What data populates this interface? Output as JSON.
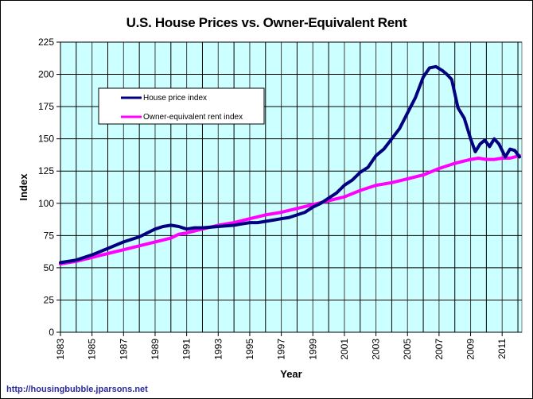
{
  "chart_data": {
    "type": "line",
    "title": "U.S. House Prices vs. Owner-Equivalent Rent",
    "xlabel": "Year",
    "ylabel": "Index",
    "xlim": [
      1983,
      2012.2
    ],
    "ylim": [
      0,
      225
    ],
    "yticks": [
      0,
      25,
      50,
      75,
      100,
      125,
      150,
      175,
      200,
      225
    ],
    "xtick_labels": [
      "1983",
      "1985",
      "1987",
      "1989",
      "1991",
      "1993",
      "1995",
      "1997",
      "1999",
      "2001",
      "2003",
      "2005",
      "2007",
      "2009",
      "2011"
    ],
    "grid": true,
    "legend_position": "top-left",
    "series": [
      {
        "name": "House price index",
        "color": "#000080",
        "x": [
          1983,
          1984,
          1985,
          1986,
          1987,
          1987.5,
          1988,
          1988.5,
          1989,
          1989.5,
          1990,
          1990.5,
          1991,
          1991.5,
          1992,
          1993,
          1994,
          1994.5,
          1995,
          1995.5,
          1996,
          1996.5,
          1997,
          1997.5,
          1998,
          1998.5,
          1999,
          1999.5,
          2000,
          2000.5,
          2001,
          2001.5,
          2002,
          2002.5,
          2003,
          2003.5,
          2004,
          2004.5,
          2005,
          2005.5,
          2006,
          2006.4,
          2006.8,
          2007.2,
          2007.5,
          2007.8,
          2008.2,
          2008.6,
          2009,
          2009.3,
          2009.6,
          2009.9,
          2010.2,
          2010.5,
          2010.8,
          2011.2,
          2011.5,
          2011.8,
          2012.1
        ],
        "values": [
          54,
          56,
          60,
          65,
          70,
          72,
          74,
          77,
          80,
          82,
          83,
          82,
          80,
          81,
          81,
          82,
          83,
          84,
          85,
          85,
          86,
          87,
          88,
          89,
          91,
          93,
          97,
          100,
          104,
          108,
          114,
          118,
          124,
          128,
          137,
          142,
          150,
          158,
          170,
          182,
          198,
          205,
          206,
          203,
          200,
          196,
          174,
          166,
          150,
          140,
          146,
          149,
          144,
          150,
          146,
          136,
          142,
          141,
          136
        ]
      },
      {
        "name": "Owner-equivalent rent index",
        "color": "#ff00ff",
        "x": [
          1983,
          1984,
          1985,
          1986,
          1987,
          1988,
          1989,
          1990,
          1990.5,
          1991,
          1992,
          1993,
          1994,
          1995,
          1996,
          1997,
          1998,
          1999,
          2000,
          2001,
          2002,
          2003,
          2004,
          2005,
          2006,
          2007,
          2008,
          2009,
          2009.5,
          2010,
          2010.5,
          2011,
          2011.5,
          2012.1
        ],
        "values": [
          53,
          55,
          58,
          61,
          64,
          67,
          70,
          73,
          76,
          77,
          80,
          83,
          85,
          88,
          91,
          93,
          96,
          99,
          102,
          105,
          110,
          114,
          116,
          119,
          122,
          127,
          131,
          134,
          135,
          134,
          134,
          135,
          135,
          137
        ]
      }
    ]
  },
  "source_text": "http://housingbubble.jparsons.net"
}
